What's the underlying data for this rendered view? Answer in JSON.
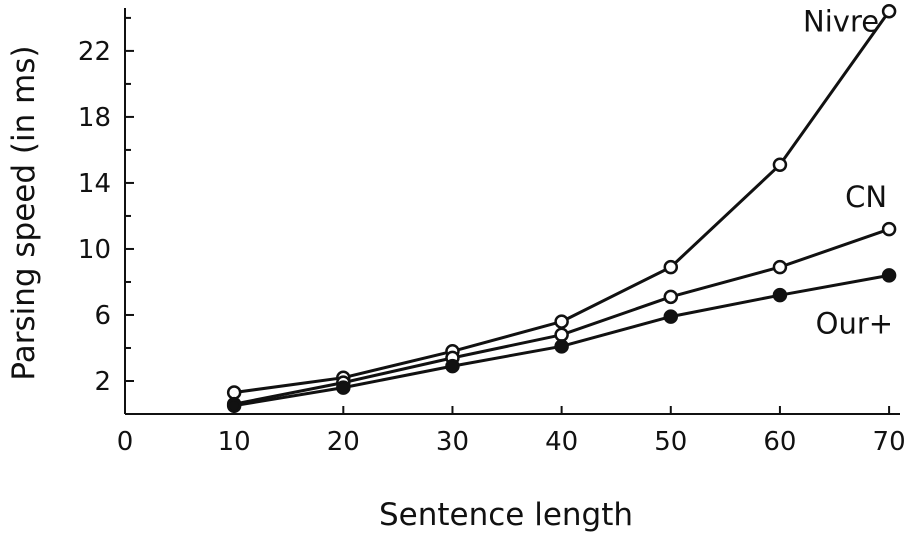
{
  "chart_data": {
    "type": "line",
    "xlabel": "Sentence length",
    "ylabel": "Parsing speed (in ms)",
    "xlim": [
      0,
      71
    ],
    "ylim": [
      0,
      24.6
    ],
    "xticks": [
      0,
      10,
      20,
      30,
      40,
      50,
      60,
      70
    ],
    "yticks": [
      2,
      6,
      10,
      14,
      18,
      22
    ],
    "yminor_ticks": [
      4,
      8,
      12,
      16,
      20,
      24
    ],
    "grid": false,
    "legend": "inline labels at line ends",
    "x": [
      10,
      20,
      30,
      40,
      50,
      60,
      70
    ],
    "series": [
      {
        "name": "Nivre",
        "marker": "open-circle",
        "values": [
          1.3,
          2.2,
          3.8,
          5.6,
          8.9,
          15.1,
          24.4
        ]
      },
      {
        "name": "CN",
        "marker": "open-circle",
        "values": [
          0.6,
          1.9,
          3.4,
          4.8,
          7.1,
          8.9,
          11.2
        ]
      },
      {
        "name": "Our+",
        "marker": "filled-circle",
        "values": [
          0.5,
          1.6,
          2.9,
          4.1,
          5.9,
          7.2,
          8.4
        ]
      }
    ]
  }
}
